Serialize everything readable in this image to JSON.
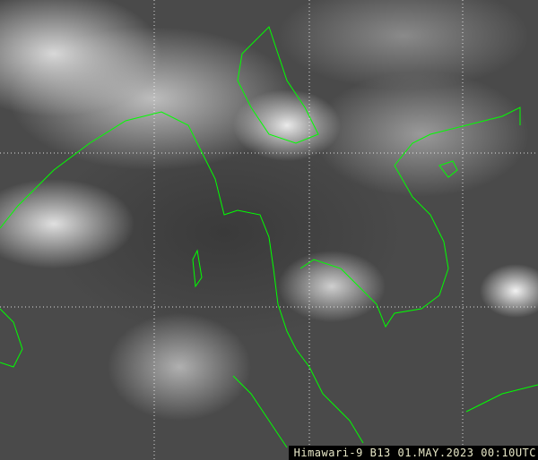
{
  "caption": "Himawari-9 B13 01.MAY.2023 00:10UTC",
  "colors": {
    "coastline": "#00ff00",
    "grid": "#ffffff",
    "caption_text": "#e8e8c8"
  }
}
